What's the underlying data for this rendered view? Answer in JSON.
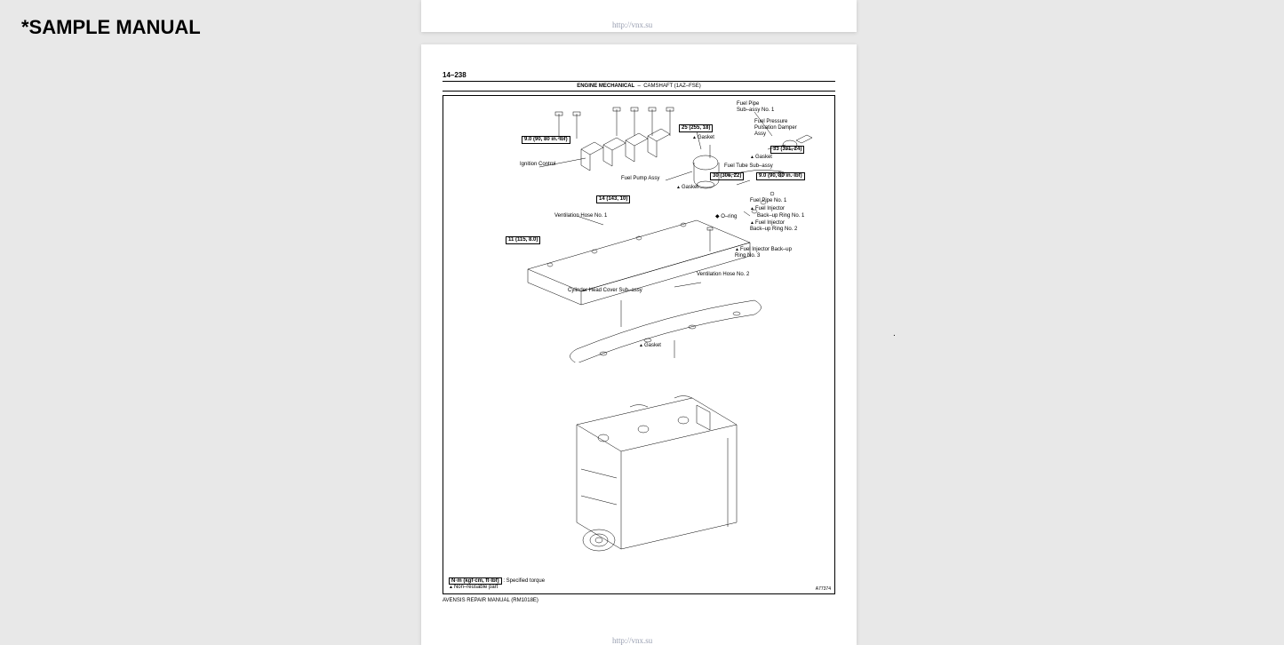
{
  "watermark": "*SAMPLE MANUAL",
  "url_text": "http://vnx.su",
  "page": {
    "number": "14–238",
    "section": "ENGINE MECHANICAL",
    "subsection": "CAMSHAFT (1AZ–FSE)",
    "diagram_ref": "A77374",
    "footer_manual": "AVENSIS REPAIR MANUAL   (RM1018E)"
  },
  "torques": {
    "t1": "9.0 (90, 80 in.·lbf)",
    "t2": "25 (255, 18)",
    "t3": "33 (331, 24)",
    "t4": "30 (306, 22)",
    "t5": "9.0 (90, 80 in.·lbf)",
    "t6": "14 (143, 10)",
    "t7": "11 (115, 8.0)"
  },
  "labels": {
    "fuel_pipe_sub": "Fuel Pipe\nSub–assy No. 1",
    "fuel_pressure": "Fuel Pressure\nPulsation Damper\nAssy",
    "gasket": "Gasket",
    "fuel_tube_sub": "Fuel Tube Sub–assy",
    "ignition_control": "Ignition Control",
    "fuel_pump": "Fuel Pump Assy",
    "fuel_pipe_1": "Fuel Pipe No. 1",
    "fuel_injector": "Fuel Injector",
    "backup_ring_1": "Back–up Ring No. 1",
    "backup_ring_2": "Fuel Injector\nBack–up Ring No. 2",
    "backup_ring_3": "Fuel Injector Back–up\nRing No. 3",
    "o_ring": "O–ring",
    "vent_hose_1": "Ventilation Hose No. 1",
    "vent_hose_2": "Ventilation Hose No. 2",
    "cyl_head_cover": "Cylinder Head Cover Sub–assy"
  },
  "legend": {
    "torque_key": "N·m (kgf·cm, ft·lbf)",
    "torque_desc": ": Specified torque",
    "nonreuse": "Non–reusable part"
  }
}
